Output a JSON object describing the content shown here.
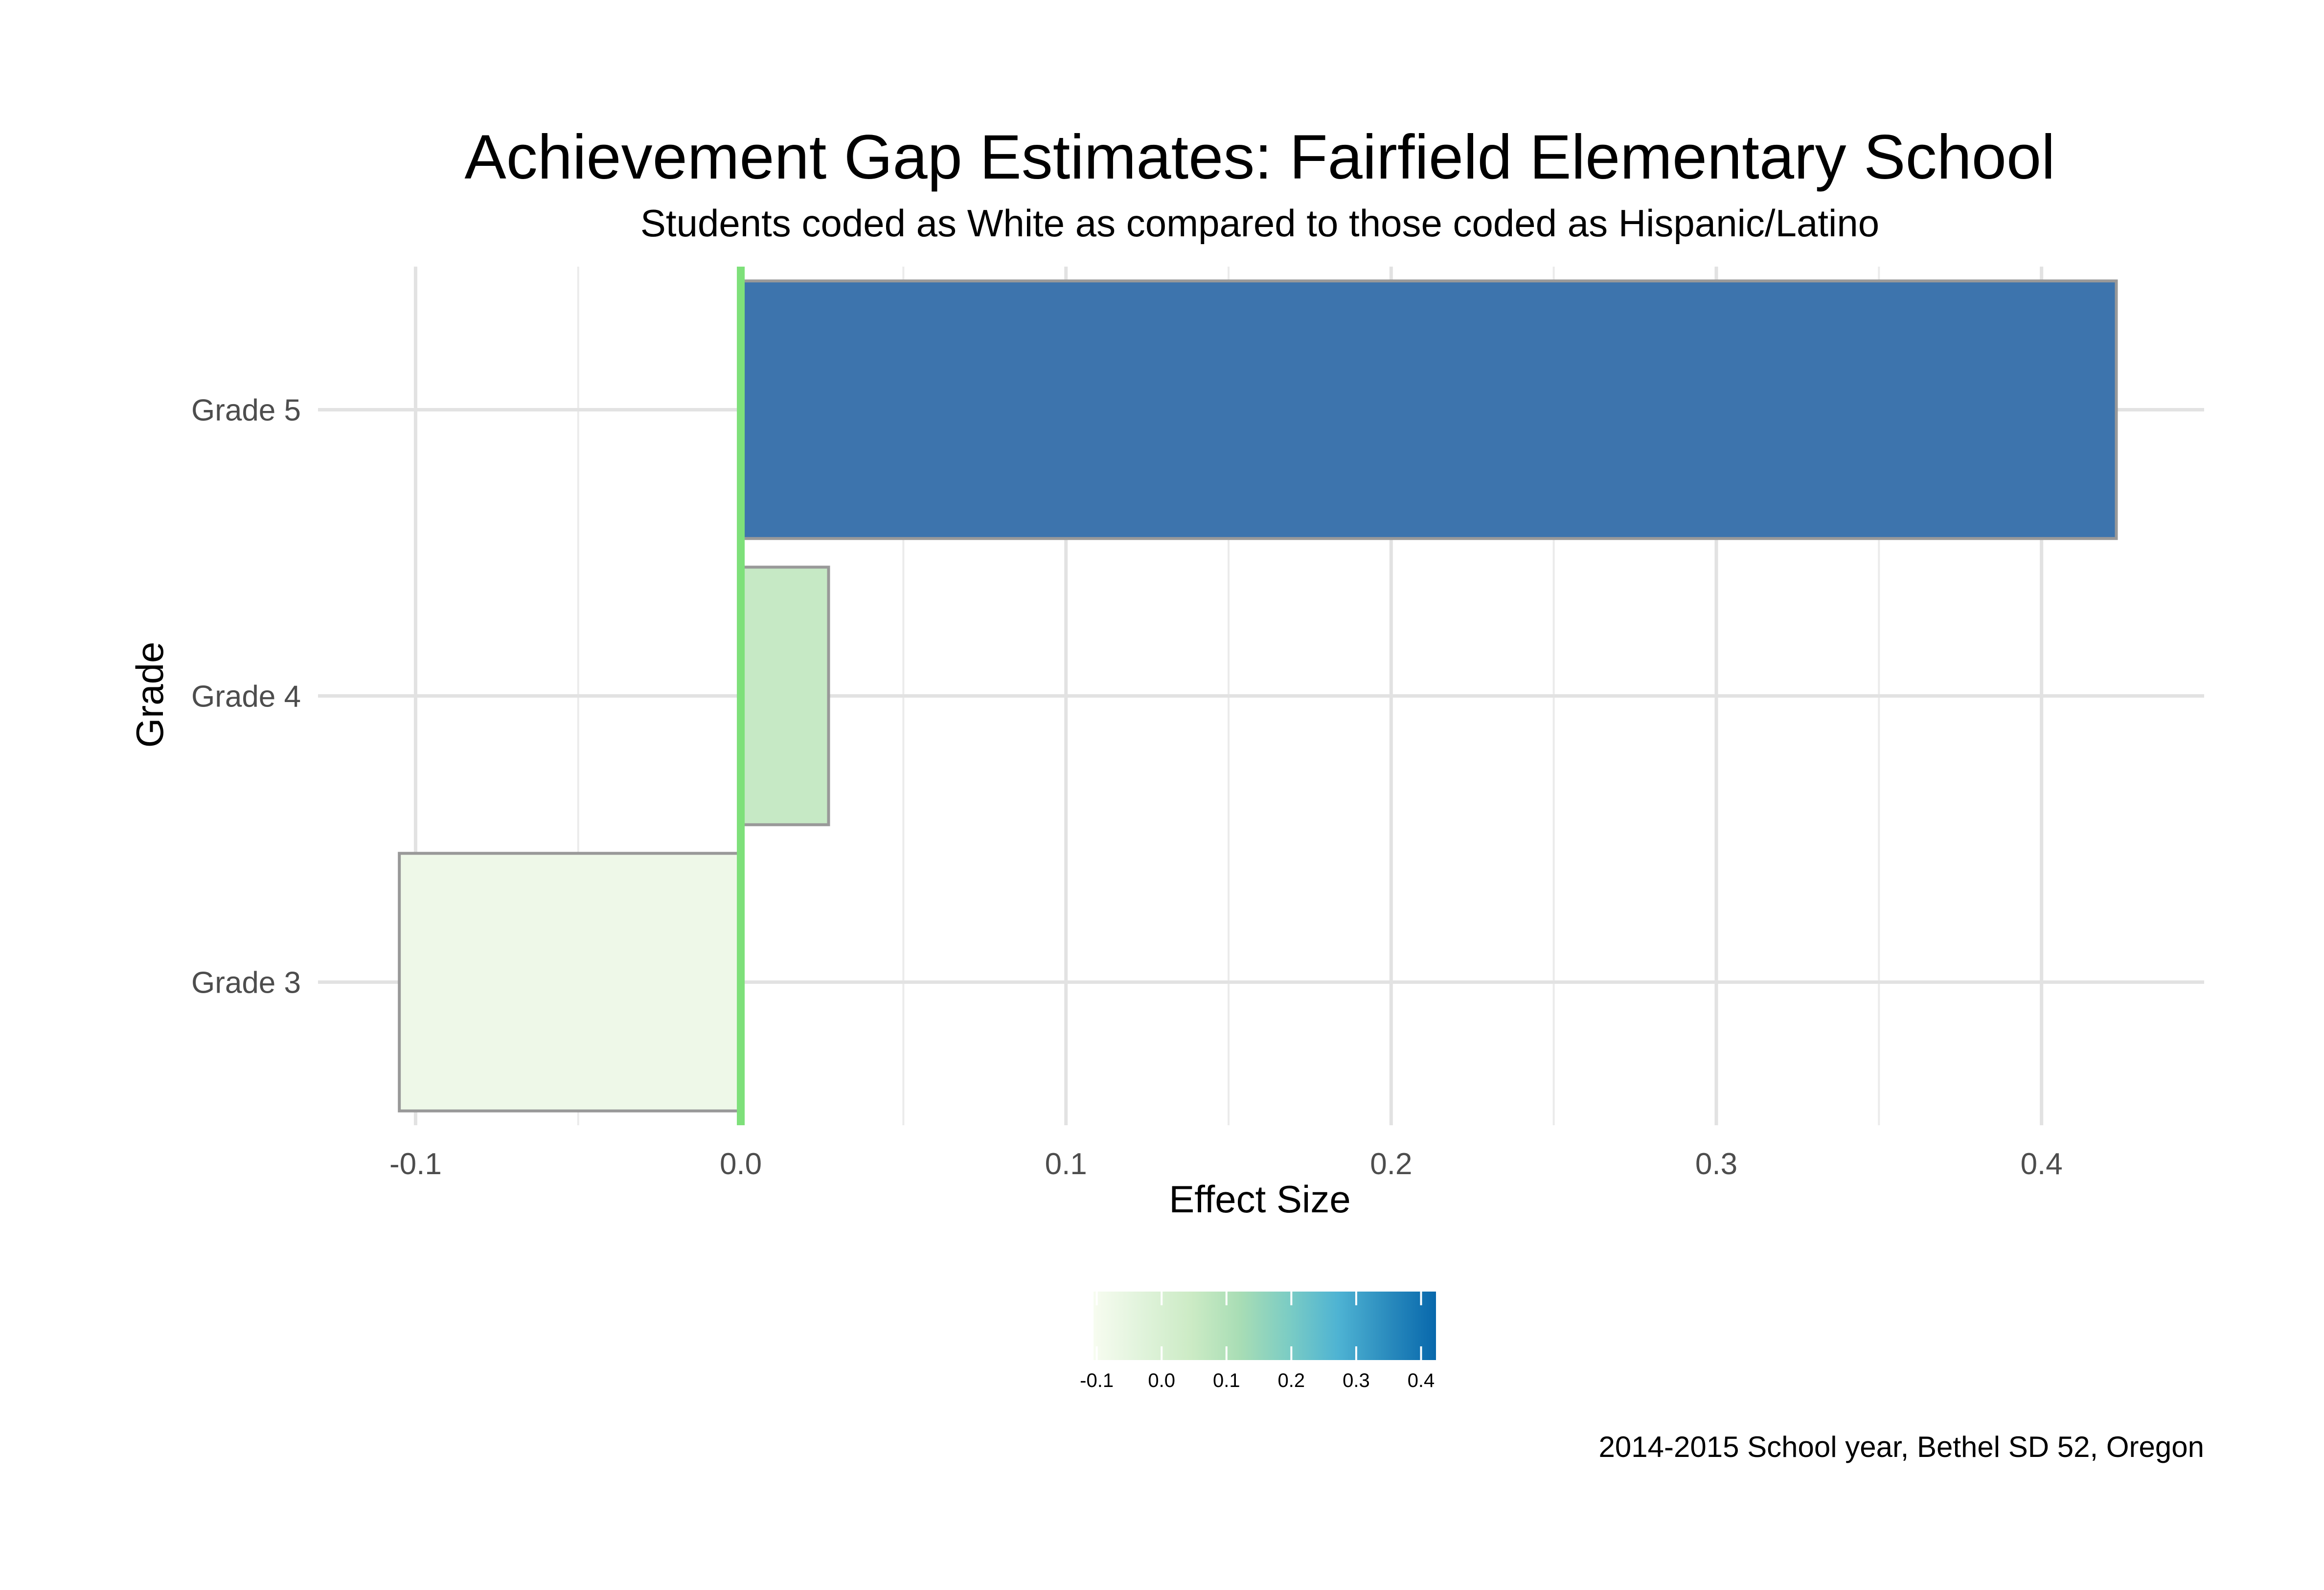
{
  "chart_data": {
    "type": "bar",
    "orientation": "horizontal",
    "title": "Achievement Gap Estimates: Fairfield Elementary School",
    "subtitle": "Students coded as White as compared to those coded as Hispanic/Latino",
    "caption": "2014-2015 School year, Bethel SD 52, Oregon",
    "xlabel": "Effect Size",
    "ylabel": "Grade",
    "categories": [
      "Grade 3",
      "Grade 4",
      "Grade 5"
    ],
    "values": [
      -0.105,
      0.027,
      0.423
    ],
    "xlim": [
      -0.13,
      0.45
    ],
    "x_ticks": [
      -0.1,
      0.0,
      0.1,
      0.2,
      0.3,
      0.4
    ],
    "x_tick_labels": [
      "-0.1",
      "0.0",
      "0.1",
      "0.2",
      "0.3",
      "0.4"
    ],
    "reference_line": {
      "x": 0,
      "color": "#7ee07a"
    },
    "grid": true,
    "legend": {
      "type": "colorbar",
      "placement": "bottom",
      "range": [
        -0.105,
        0.423
      ],
      "ticks": [
        -0.1,
        0.0,
        0.1,
        0.2,
        0.3,
        0.4
      ],
      "tick_labels": [
        "-0.1",
        "0.0",
        "0.1",
        "0.2",
        "0.3",
        "0.4"
      ],
      "colors": [
        "#f7fcf0",
        "#e0f3db",
        "#ccebc5",
        "#a8ddb5",
        "#7bccc4",
        "#4eb3d3",
        "#2b8cbe",
        "#0868ac"
      ]
    },
    "bar_colors": [
      "#eef8e8",
      "#c6e9c5",
      "#3d74ad"
    ],
    "bar_outline_color": "#999999"
  }
}
